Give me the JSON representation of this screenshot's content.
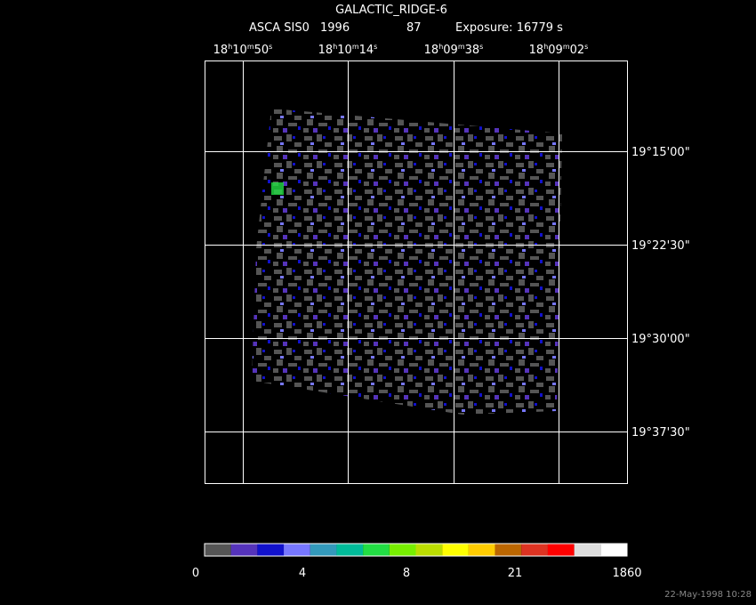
{
  "header": {
    "title": "GALACTIC_RIDGE-6",
    "instrument": "ASCA SIS0",
    "year": "1996",
    "sequence": "87",
    "exposure": "Exposure: 16779 s"
  },
  "ra_labels": [
    [
      "18",
      "h",
      "10",
      "m",
      "50",
      "s"
    ],
    [
      "18",
      "h",
      "10",
      "m",
      "14",
      "s"
    ],
    [
      "18",
      "h",
      "09",
      "m",
      "38",
      "s"
    ],
    [
      "18",
      "h",
      "09",
      "m",
      "02",
      "s"
    ]
  ],
  "dec_labels": [
    "19°15'00\"",
    "19°22'30\"",
    "19°30'00\"",
    "19°37'30\""
  ],
  "colorbar": {
    "colors": [
      "#555555",
      "#5533bb",
      "#1111cc",
      "#7777ff",
      "#3399bb",
      "#00bb99",
      "#22dd44",
      "#77ee00",
      "#bbdd00",
      "#ffff00",
      "#ffcc00",
      "#bb6600",
      "#dd3322",
      "#ff0000",
      "#dddddd",
      "#ffffff"
    ],
    "labels": [
      "0",
      "4",
      "8",
      "21",
      "1860"
    ]
  },
  "timestamp": "22-May-1998 10:28"
}
